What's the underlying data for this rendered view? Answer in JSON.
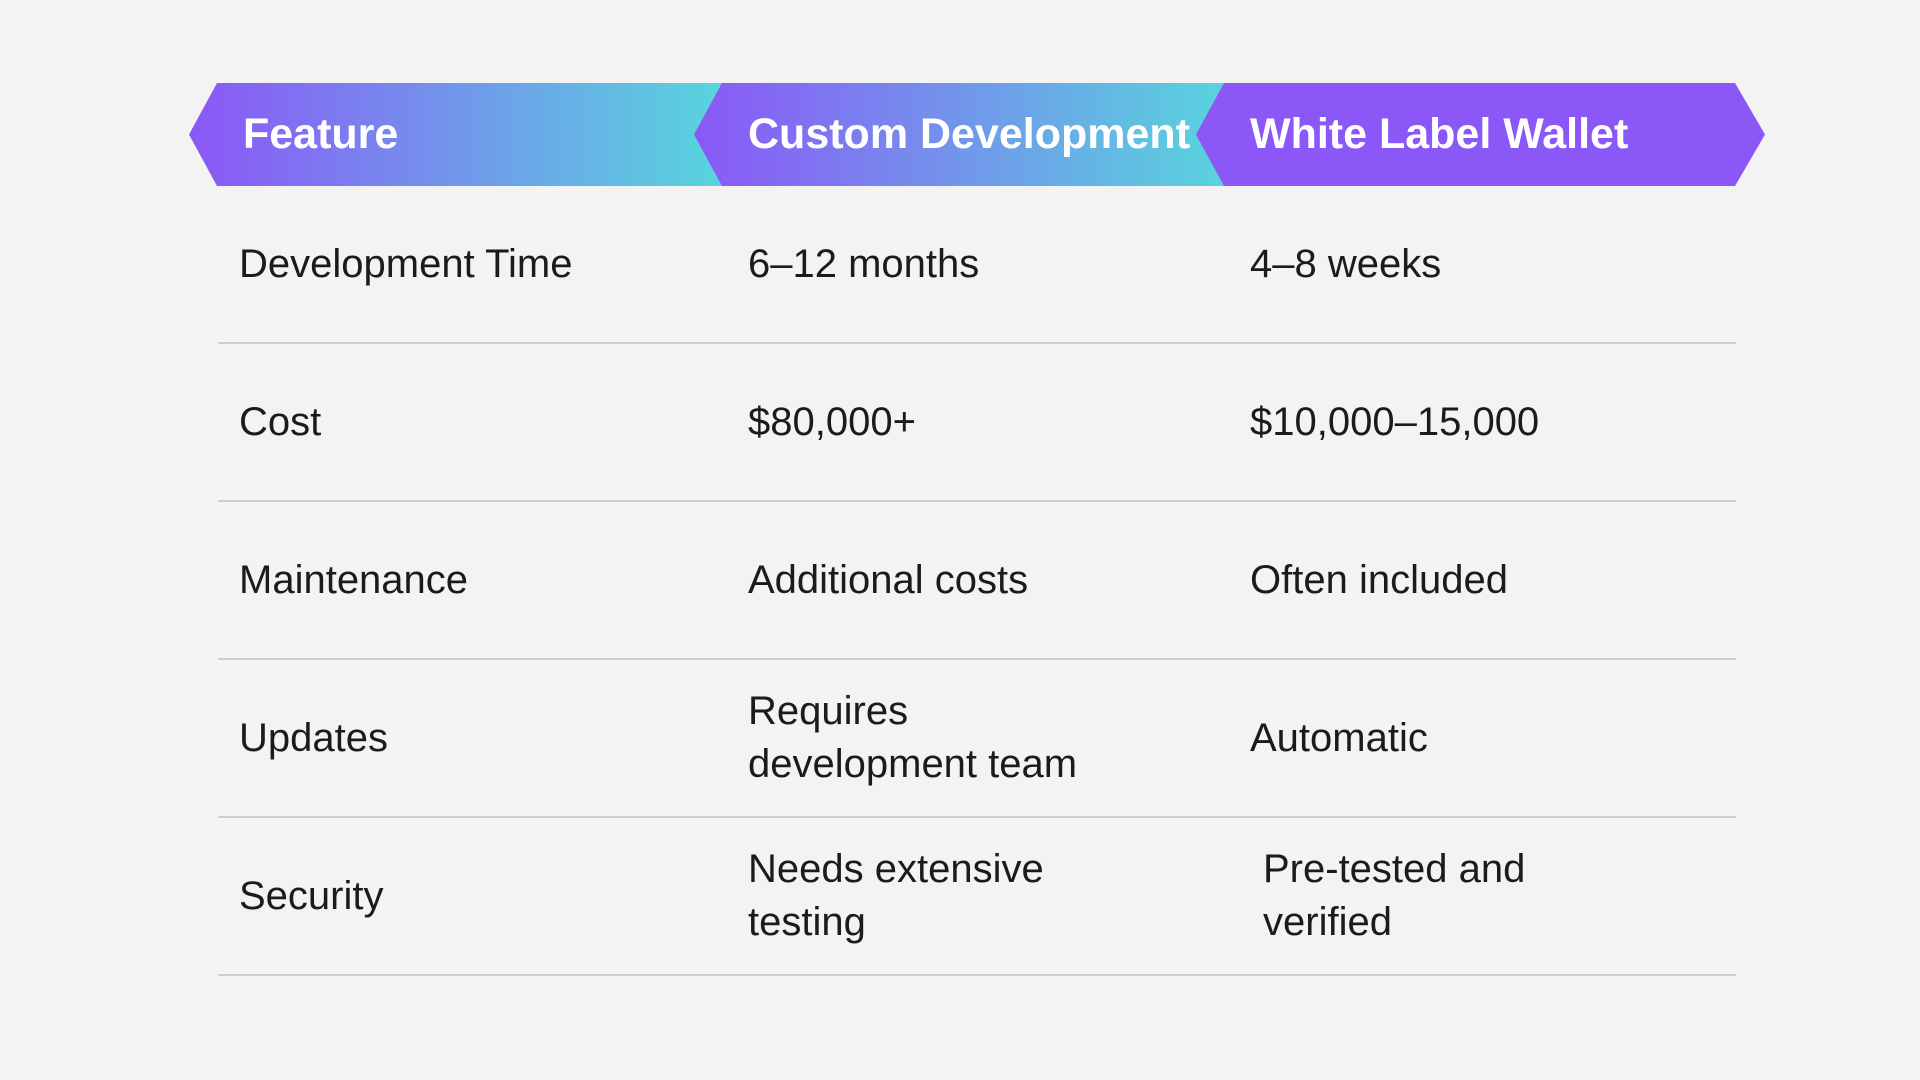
{
  "page": {
    "background_color": "#f4f3f4",
    "divider_color": "#cdcdcd",
    "text_color": "#1b1b1b",
    "accent_purple": "#8b57f7",
    "accent_cyan": "#58d5de",
    "header_text_color": "#ffffff"
  },
  "header": {
    "columns": [
      {
        "label": "Feature"
      },
      {
        "label": "Custom Development"
      },
      {
        "label": "White Label Wallet"
      }
    ]
  },
  "table": {
    "rows": [
      {
        "feature": "Development Time",
        "custom": "6–12 months",
        "white_label": "4–8 weeks"
      },
      {
        "feature": "Cost",
        "custom": "$80,000+",
        "white_label": "$10,000–15,000"
      },
      {
        "feature": "Maintenance",
        "custom": "Additional costs",
        "white_label": "Often included"
      },
      {
        "feature": "Updates",
        "custom": "Requires development team",
        "white_label": "Automatic"
      },
      {
        "feature": "Security",
        "custom": "Needs extensive testing",
        "white_label": "Pre-tested and verified"
      }
    ]
  },
  "chart_data": {
    "type": "table",
    "title": "",
    "columns": [
      "Feature",
      "Custom Development",
      "White Label Wallet"
    ],
    "rows": [
      [
        "Development Time",
        "6–12 months",
        "4–8 weeks"
      ],
      [
        "Cost",
        "$80,000+",
        "$10,000–15,000"
      ],
      [
        "Maintenance",
        "Additional costs",
        "Often included"
      ],
      [
        "Updates",
        "Requires development team",
        "Automatic"
      ],
      [
        "Security",
        "Needs extensive testing",
        "Pre-tested and verified"
      ]
    ],
    "layout": {
      "header_style": "chevron-ribbon",
      "header_gradient": [
        "#8b57f7",
        "#58d5de"
      ],
      "grid": "horizontal-dividers-only"
    }
  }
}
